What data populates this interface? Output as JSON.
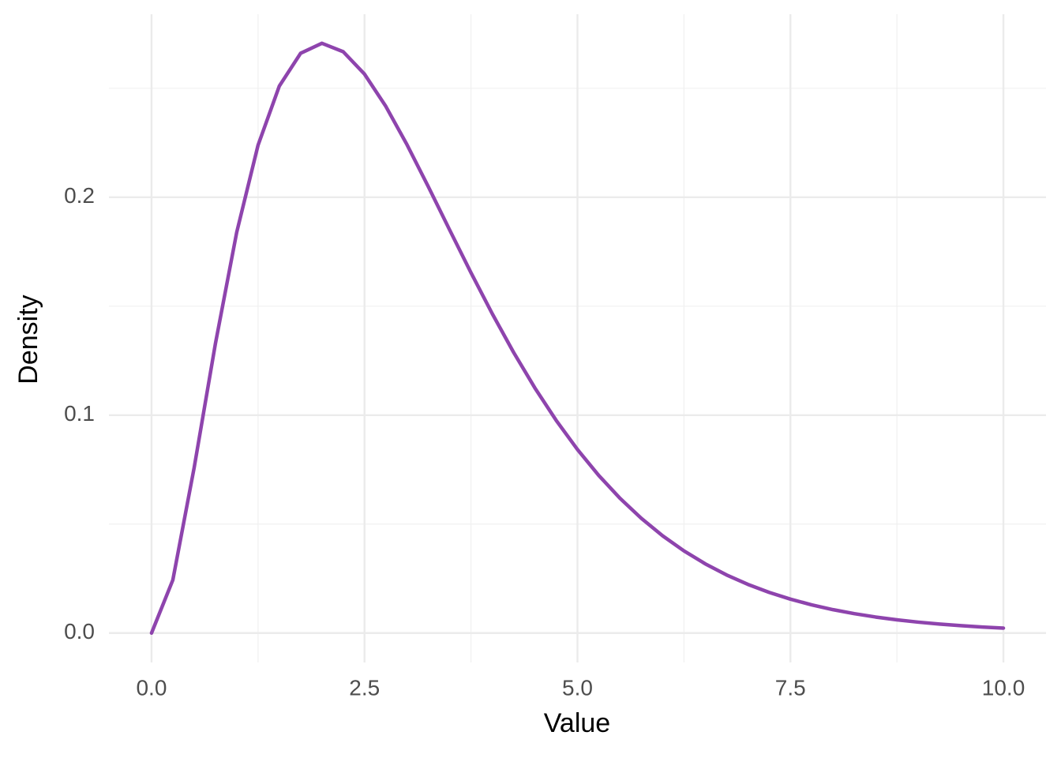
{
  "chart_data": {
    "type": "line",
    "x_label": "Value",
    "y_label": "Density",
    "x": [
      0,
      0.25,
      0.5,
      0.75,
      1,
      1.25,
      1.5,
      1.75,
      2,
      2.25,
      2.5,
      2.75,
      3,
      3.25,
      3.5,
      3.75,
      4,
      4.25,
      4.5,
      4.75,
      5,
      5.25,
      5.5,
      5.75,
      6,
      6.25,
      6.5,
      6.75,
      7,
      7.25,
      7.5,
      7.75,
      8,
      8.25,
      8.5,
      8.75,
      9,
      9.25,
      9.5,
      9.75,
      10
    ],
    "series": [
      {
        "color": "#8e44ad",
        "values": [
          0,
          0.02434,
          0.07582,
          0.13286,
          0.18394,
          0.22383,
          0.25102,
          0.26609,
          0.27067,
          0.26679,
          0.25652,
          0.24173,
          0.22404,
          0.20478,
          0.18496,
          0.16536,
          0.14653,
          0.12882,
          0.11248,
          0.0976,
          0.08422,
          0.07232,
          0.06181,
          0.05262,
          0.04462,
          0.03771,
          0.03176,
          0.02667,
          0.02234,
          0.01866,
          0.01556,
          0.01294,
          0.01073,
          0.00889,
          0.00735,
          0.00607,
          0.005,
          0.00411,
          0.00338,
          0.00277,
          0.00227
        ]
      }
    ],
    "xlim": [
      -0.5,
      10.5
    ],
    "ylim": [
      -0.0135,
      0.284
    ],
    "xticks": [
      {
        "value": 0,
        "label": "0.0"
      },
      2.5,
      {
        "value": 5,
        "label": "5.0"
      },
      7.5,
      {
        "value": 10,
        "label": "10.0"
      }
    ],
    "yticks": [
      {
        "value": 0,
        "label": "0.0"
      },
      0.1,
      0.2
    ],
    "x_minor_grid": [
      1.25,
      3.75,
      6.25,
      8.75
    ],
    "y_minor_grid": [
      0.05,
      0.15,
      0.25
    ],
    "grid": true
  }
}
